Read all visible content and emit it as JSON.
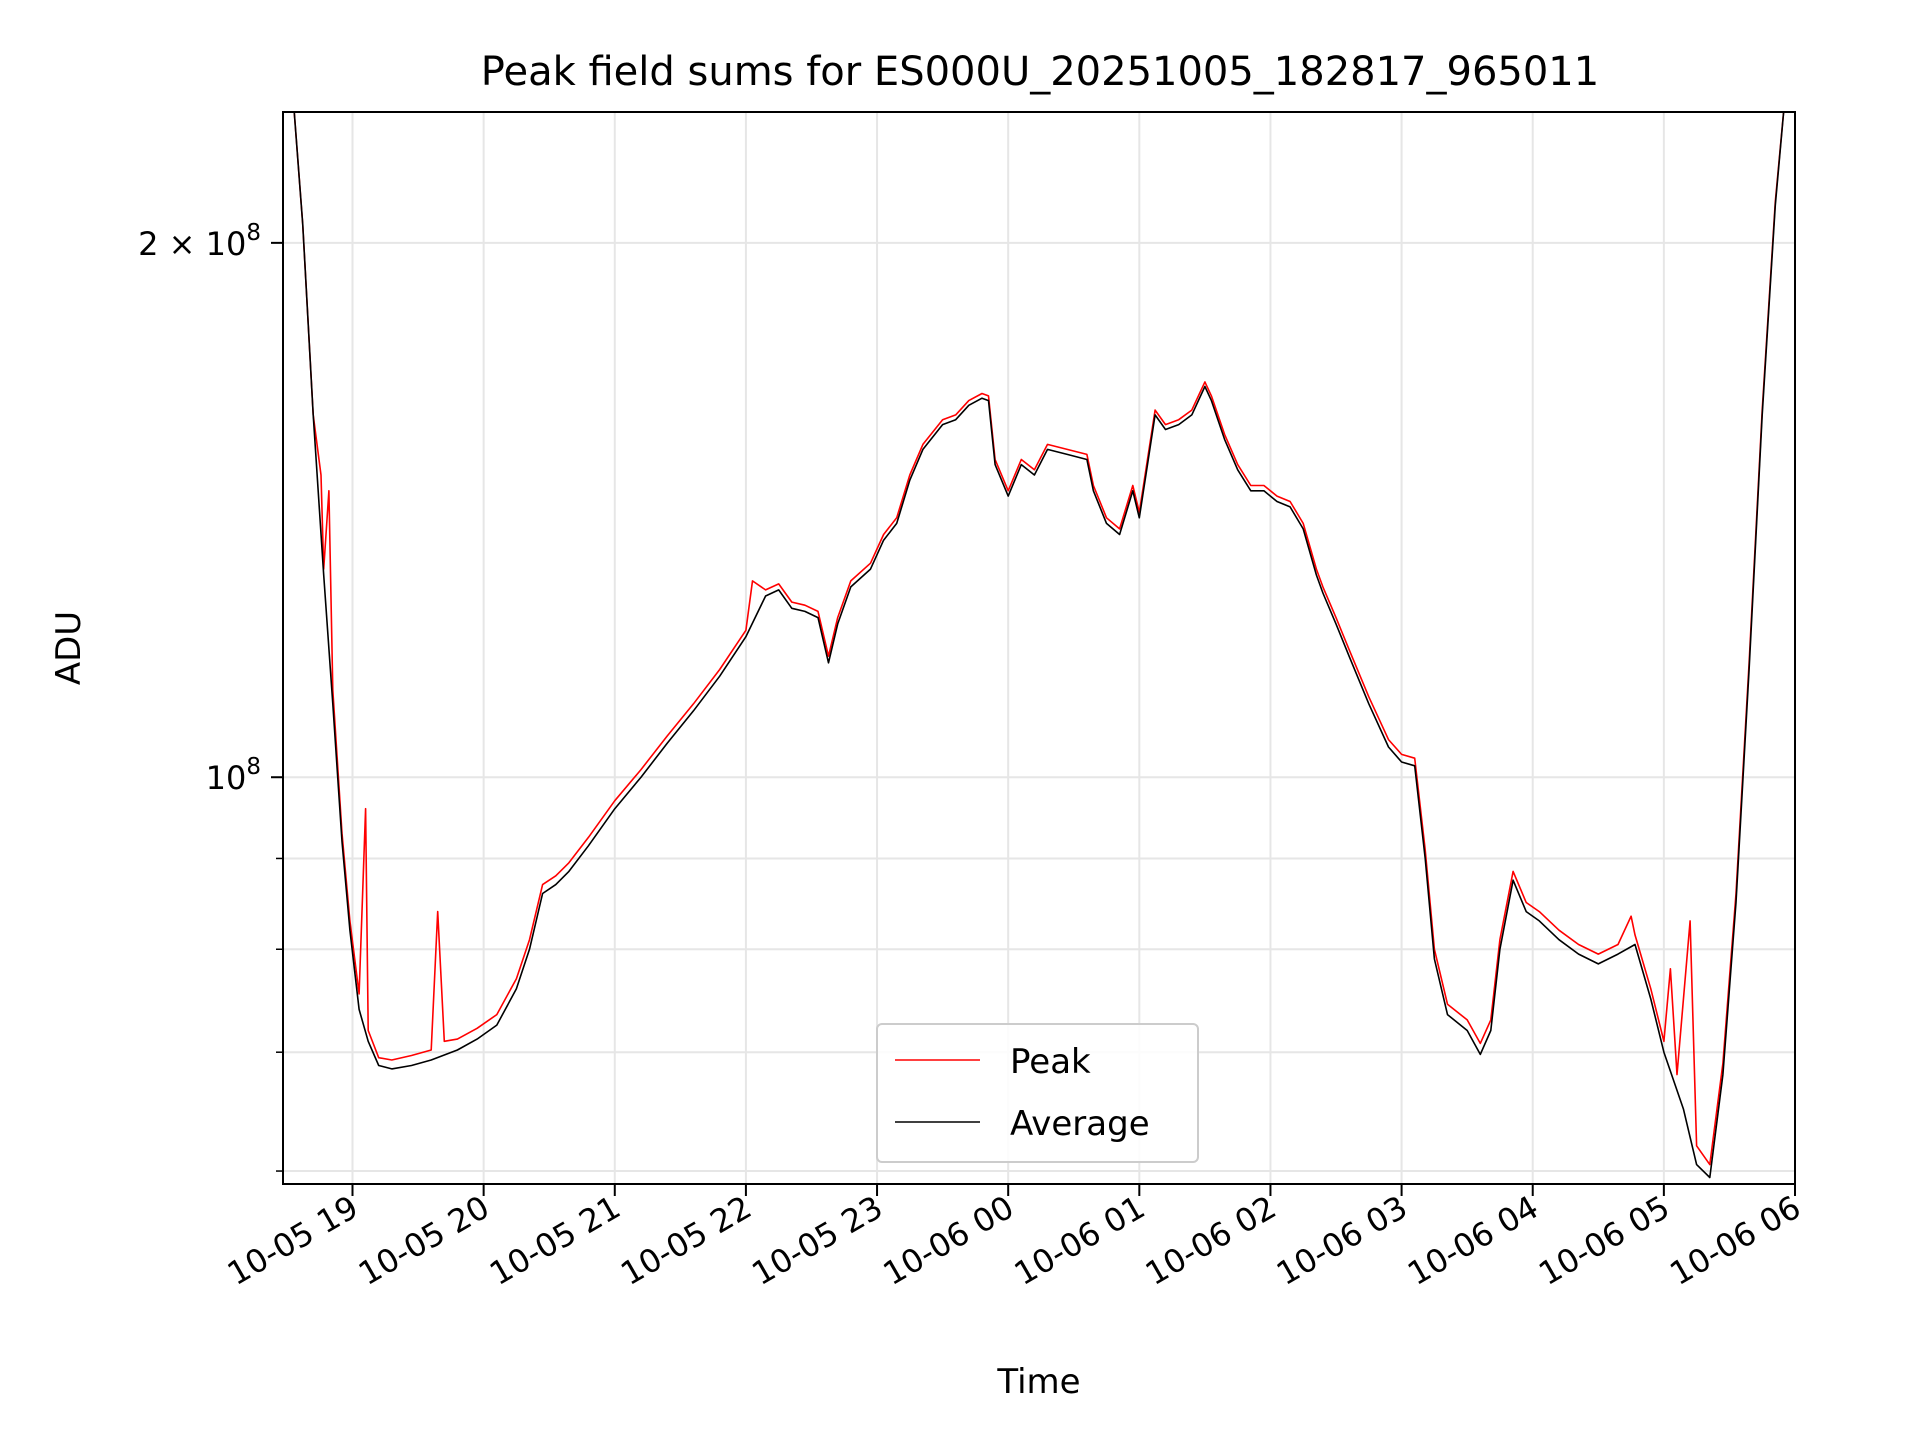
{
  "chart_data": {
    "type": "line",
    "title": "Peak field sums for ES000U_20251005_182817_965011",
    "xlabel": "Time",
    "ylabel": "ADU",
    "y_scale": "log",
    "ylim": [
      59000000,
      237000000
    ],
    "xlim_hours": [
      18.47,
      30.0
    ],
    "grid": true,
    "x_ticks": [
      {
        "h": 19,
        "label": "10-05 19"
      },
      {
        "h": 20,
        "label": "10-05 20"
      },
      {
        "h": 21,
        "label": "10-05 21"
      },
      {
        "h": 22,
        "label": "10-05 22"
      },
      {
        "h": 23,
        "label": "10-05 23"
      },
      {
        "h": 24,
        "label": "10-06 00"
      },
      {
        "h": 25,
        "label": "10-06 01"
      },
      {
        "h": 26,
        "label": "10-06 02"
      },
      {
        "h": 27,
        "label": "10-06 03"
      },
      {
        "h": 28,
        "label": "10-06 04"
      },
      {
        "h": 29,
        "label": "10-06 05"
      },
      {
        "h": 30,
        "label": "10-06 06"
      }
    ],
    "y_major_ticks": [
      {
        "v": 100000000,
        "base": "10",
        "exp": "8"
      },
      {
        "v": 200000000,
        "base": "2 × 10",
        "exp": "8"
      }
    ],
    "y_minor_ticks": [
      60000000,
      70000000,
      80000000,
      90000000
    ],
    "legend_position": "lower-center",
    "series": [
      {
        "name": "Average",
        "color": "#000000",
        "points": [
          [
            18.55,
            240
          ],
          [
            18.62,
            205
          ],
          [
            18.7,
            160
          ],
          [
            18.78,
            130
          ],
          [
            18.85,
            110
          ],
          [
            18.92,
            92
          ],
          [
            18.98,
            82
          ],
          [
            19.05,
            74
          ],
          [
            19.12,
            71
          ],
          [
            19.2,
            68.8
          ],
          [
            19.3,
            68.5
          ],
          [
            19.45,
            68.8
          ],
          [
            19.6,
            69.3
          ],
          [
            19.8,
            70.2
          ],
          [
            19.95,
            71.2
          ],
          [
            20.1,
            72.5
          ],
          [
            20.25,
            76
          ],
          [
            20.35,
            80
          ],
          [
            20.45,
            86
          ],
          [
            20.55,
            87
          ],
          [
            20.65,
            88.5
          ],
          [
            20.8,
            91.5
          ],
          [
            21.0,
            96
          ],
          [
            21.2,
            100
          ],
          [
            21.4,
            104.5
          ],
          [
            21.6,
            109
          ],
          [
            21.8,
            114
          ],
          [
            22.0,
            120
          ],
          [
            22.15,
            126.5
          ],
          [
            22.25,
            127.5
          ],
          [
            22.35,
            124.5
          ],
          [
            22.45,
            124
          ],
          [
            22.55,
            123
          ],
          [
            22.63,
            116
          ],
          [
            22.7,
            122
          ],
          [
            22.8,
            128
          ],
          [
            22.95,
            131
          ],
          [
            23.05,
            136
          ],
          [
            23.15,
            139
          ],
          [
            23.25,
            147
          ],
          [
            23.35,
            153
          ],
          [
            23.5,
            158
          ],
          [
            23.6,
            159
          ],
          [
            23.7,
            162
          ],
          [
            23.8,
            163.5
          ],
          [
            23.85,
            163
          ],
          [
            23.9,
            150
          ],
          [
            24.0,
            144
          ],
          [
            24.1,
            150
          ],
          [
            24.2,
            148
          ],
          [
            24.3,
            153
          ],
          [
            24.45,
            152
          ],
          [
            24.6,
            151
          ],
          [
            24.65,
            145
          ],
          [
            24.75,
            139
          ],
          [
            24.85,
            137
          ],
          [
            24.95,
            145
          ],
          [
            25.0,
            140
          ],
          [
            25.05,
            148
          ],
          [
            25.12,
            160
          ],
          [
            25.2,
            157
          ],
          [
            25.3,
            158
          ],
          [
            25.4,
            160
          ],
          [
            25.5,
            166
          ],
          [
            25.55,
            163
          ],
          [
            25.65,
            155
          ],
          [
            25.75,
            149
          ],
          [
            25.85,
            145
          ],
          [
            25.95,
            145
          ],
          [
            26.05,
            143
          ],
          [
            26.15,
            142
          ],
          [
            26.25,
            138
          ],
          [
            26.35,
            130
          ],
          [
            26.4,
            127
          ],
          [
            26.5,
            122
          ],
          [
            26.6,
            117
          ],
          [
            26.75,
            110
          ],
          [
            26.9,
            104
          ],
          [
            27.0,
            102
          ],
          [
            27.1,
            101.5
          ],
          [
            27.18,
            90
          ],
          [
            27.25,
            79
          ],
          [
            27.35,
            73.5
          ],
          [
            27.5,
            72
          ],
          [
            27.6,
            69.8
          ],
          [
            27.68,
            72
          ],
          [
            27.75,
            80
          ],
          [
            27.85,
            87.5
          ],
          [
            27.95,
            84
          ],
          [
            28.05,
            83
          ],
          [
            28.2,
            81
          ],
          [
            28.35,
            79.5
          ],
          [
            28.5,
            78.5
          ],
          [
            28.65,
            79.5
          ],
          [
            28.78,
            80.5
          ],
          [
            28.9,
            75
          ],
          [
            29.0,
            70
          ],
          [
            29.15,
            65
          ],
          [
            29.25,
            60.5
          ],
          [
            29.35,
            59.5
          ],
          [
            29.45,
            68
          ],
          [
            29.55,
            85
          ],
          [
            29.65,
            115
          ],
          [
            29.75,
            160
          ],
          [
            29.85,
            210
          ],
          [
            29.92,
            240
          ]
        ]
      },
      {
        "name": "Peak",
        "color": "#ff0000",
        "points": [
          [
            18.55,
            240
          ],
          [
            18.62,
            205
          ],
          [
            18.7,
            160
          ],
          [
            18.76,
            148
          ],
          [
            18.78,
            131
          ],
          [
            18.82,
            145
          ],
          [
            18.85,
            112
          ],
          [
            18.92,
            93
          ],
          [
            18.98,
            83
          ],
          [
            19.05,
            75.5
          ],
          [
            19.1,
            96
          ],
          [
            19.12,
            72
          ],
          [
            19.2,
            69.5
          ],
          [
            19.3,
            69.3
          ],
          [
            19.45,
            69.7
          ],
          [
            19.6,
            70.2
          ],
          [
            19.65,
            84
          ],
          [
            19.7,
            71
          ],
          [
            19.8,
            71.2
          ],
          [
            19.95,
            72.2
          ],
          [
            20.1,
            73.5
          ],
          [
            20.25,
            77
          ],
          [
            20.35,
            81
          ],
          [
            20.45,
            87
          ],
          [
            20.55,
            88
          ],
          [
            20.65,
            89.5
          ],
          [
            20.8,
            92.5
          ],
          [
            21.0,
            97
          ],
          [
            21.2,
            101
          ],
          [
            21.4,
            105.5
          ],
          [
            21.6,
            110
          ],
          [
            21.8,
            115
          ],
          [
            22.0,
            121
          ],
          [
            22.05,
            129
          ],
          [
            22.15,
            127.5
          ],
          [
            22.25,
            128.5
          ],
          [
            22.35,
            125.5
          ],
          [
            22.45,
            125
          ],
          [
            22.55,
            124
          ],
          [
            22.63,
            117
          ],
          [
            22.7,
            123
          ],
          [
            22.8,
            129
          ],
          [
            22.95,
            132
          ],
          [
            23.05,
            137
          ],
          [
            23.15,
            140
          ],
          [
            23.25,
            148
          ],
          [
            23.35,
            154
          ],
          [
            23.5,
            159
          ],
          [
            23.6,
            160
          ],
          [
            23.7,
            163
          ],
          [
            23.8,
            164.5
          ],
          [
            23.85,
            164
          ],
          [
            23.9,
            151
          ],
          [
            24.0,
            145
          ],
          [
            24.1,
            151
          ],
          [
            24.2,
            149
          ],
          [
            24.3,
            154
          ],
          [
            24.45,
            153
          ],
          [
            24.6,
            152
          ],
          [
            24.65,
            146
          ],
          [
            24.75,
            140
          ],
          [
            24.85,
            138
          ],
          [
            24.95,
            146
          ],
          [
            25.0,
            141
          ],
          [
            25.05,
            149
          ],
          [
            25.12,
            161
          ],
          [
            25.2,
            158
          ],
          [
            25.3,
            159
          ],
          [
            25.4,
            161
          ],
          [
            25.5,
            167
          ],
          [
            25.55,
            164
          ],
          [
            25.65,
            156
          ],
          [
            25.75,
            150
          ],
          [
            25.85,
            146
          ],
          [
            25.95,
            146
          ],
          [
            26.05,
            144
          ],
          [
            26.15,
            143
          ],
          [
            26.25,
            139
          ],
          [
            26.35,
            131
          ],
          [
            26.4,
            128
          ],
          [
            26.5,
            123
          ],
          [
            26.6,
            118
          ],
          [
            26.75,
            111
          ],
          [
            26.9,
            105
          ],
          [
            27.0,
            103
          ],
          [
            27.1,
            102.5
          ],
          [
            27.18,
            91
          ],
          [
            27.25,
            80
          ],
          [
            27.35,
            74.5
          ],
          [
            27.5,
            73
          ],
          [
            27.6,
            70.8
          ],
          [
            27.68,
            73
          ],
          [
            27.75,
            81
          ],
          [
            27.85,
            88.5
          ],
          [
            27.95,
            85
          ],
          [
            28.05,
            84
          ],
          [
            28.2,
            82
          ],
          [
            28.35,
            80.5
          ],
          [
            28.5,
            79.5
          ],
          [
            28.65,
            80.5
          ],
          [
            28.75,
            83.5
          ],
          [
            28.78,
            81.5
          ],
          [
            28.9,
            76
          ],
          [
            29.0,
            71
          ],
          [
            29.05,
            78
          ],
          [
            29.1,
            68
          ],
          [
            29.2,
            83
          ],
          [
            29.25,
            62
          ],
          [
            29.35,
            60.5
          ],
          [
            29.45,
            69
          ],
          [
            29.55,
            86
          ],
          [
            29.65,
            116
          ],
          [
            29.75,
            161
          ],
          [
            29.85,
            211
          ],
          [
            29.92,
            240
          ]
        ]
      }
    ]
  }
}
